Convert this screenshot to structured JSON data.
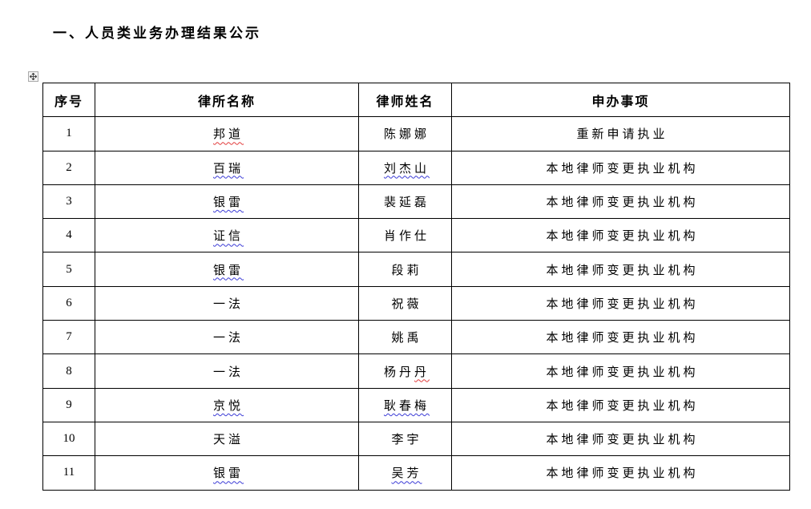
{
  "document": {
    "title": "一、人员类业务办理结果公示"
  },
  "colors": {
    "border": "#000000",
    "text": "#000000",
    "squiggle_blue": "#3b3bd6",
    "squiggle_red": "#e23b3b",
    "page_background": "#ffffff"
  },
  "icons": {
    "table_move_handle": "move-cross-arrows"
  },
  "table": {
    "columns": [
      "序号",
      "律所名称",
      "律师姓名",
      "申办事项"
    ],
    "rows": [
      {
        "no": "1",
        "firm": "邦道",
        "firm_underline": "red",
        "lawyer": "陈娜娜",
        "lawyer_underline": "",
        "matter": "重新申请执业"
      },
      {
        "no": "2",
        "firm": "百瑞",
        "firm_underline": "blue",
        "lawyer": "刘杰山",
        "lawyer_underline": "blue",
        "matter": "本地律师变更执业机构"
      },
      {
        "no": "3",
        "firm": "银雷",
        "firm_underline": "blue",
        "lawyer": "裴延磊",
        "lawyer_underline": "",
        "matter": "本地律师变更执业机构"
      },
      {
        "no": "4",
        "firm": "证信",
        "firm_underline": "blue",
        "lawyer": "肖作仕",
        "lawyer_underline": "",
        "matter": "本地律师变更执业机构"
      },
      {
        "no": "5",
        "firm": "银雷",
        "firm_underline": "blue",
        "lawyer": "段莉",
        "lawyer_underline": "",
        "matter": "本地律师变更执业机构"
      },
      {
        "no": "6",
        "firm": "一法",
        "firm_underline": "",
        "lawyer": "祝薇",
        "lawyer_underline": "",
        "matter": "本地律师变更执业机构"
      },
      {
        "no": "7",
        "firm": "一法",
        "firm_underline": "",
        "lawyer": "姚禹",
        "lawyer_underline": "",
        "matter": "本地律师变更执业机构"
      },
      {
        "no": "8",
        "firm": "一法",
        "firm_underline": "",
        "lawyer": "杨丹丹",
        "lawyer_underline": "red-last",
        "matter": "本地律师变更执业机构"
      },
      {
        "no": "9",
        "firm": "京悦",
        "firm_underline": "blue",
        "lawyer": "耿春梅",
        "lawyer_underline": "blue",
        "matter": "本地律师变更执业机构"
      },
      {
        "no": "10",
        "firm": "天溢",
        "firm_underline": "",
        "lawyer": "李宇",
        "lawyer_underline": "",
        "matter": "本地律师变更执业机构"
      },
      {
        "no": "11",
        "firm": "银雷",
        "firm_underline": "blue",
        "lawyer": "吴芳",
        "lawyer_underline": "blue",
        "matter": "本地律师变更执业机构"
      }
    ]
  }
}
